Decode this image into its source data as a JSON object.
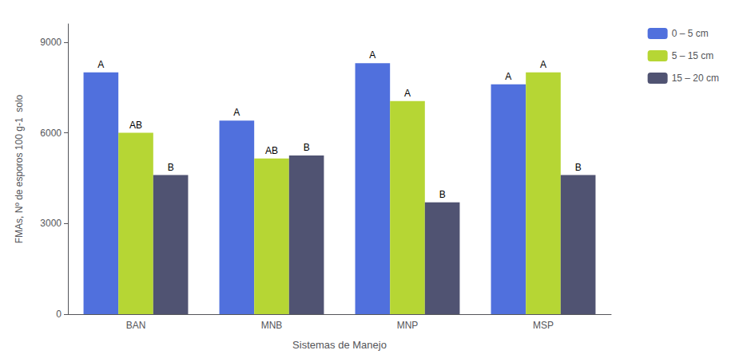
{
  "chart_data": {
    "type": "bar",
    "xlabel": "Sistemas de Manejo",
    "ylabel": "FMAs, Nº de esporos 100 g-1  solo",
    "categories": [
      "BAN",
      "MNB",
      "MNP",
      "MSP"
    ],
    "series": [
      {
        "name": "0 – 5 cm",
        "values": [
          8000,
          6400,
          8300,
          7600
        ],
        "annotations": [
          "A",
          "A",
          "A",
          "A"
        ]
      },
      {
        "name": "5 – 15 cm",
        "values": [
          6000,
          5150,
          7050,
          8000
        ],
        "annotations": [
          "AB",
          "AB",
          "A",
          "A"
        ]
      },
      {
        "name": "15 – 20 cm",
        "values": [
          4600,
          5250,
          3700,
          4600
        ],
        "annotations": [
          "B",
          "B",
          "B",
          "B"
        ]
      }
    ],
    "ylim": [
      0,
      9600
    ],
    "yticks": [
      0,
      3000,
      6000,
      9000
    ],
    "grid": false,
    "legend": "upper right"
  }
}
